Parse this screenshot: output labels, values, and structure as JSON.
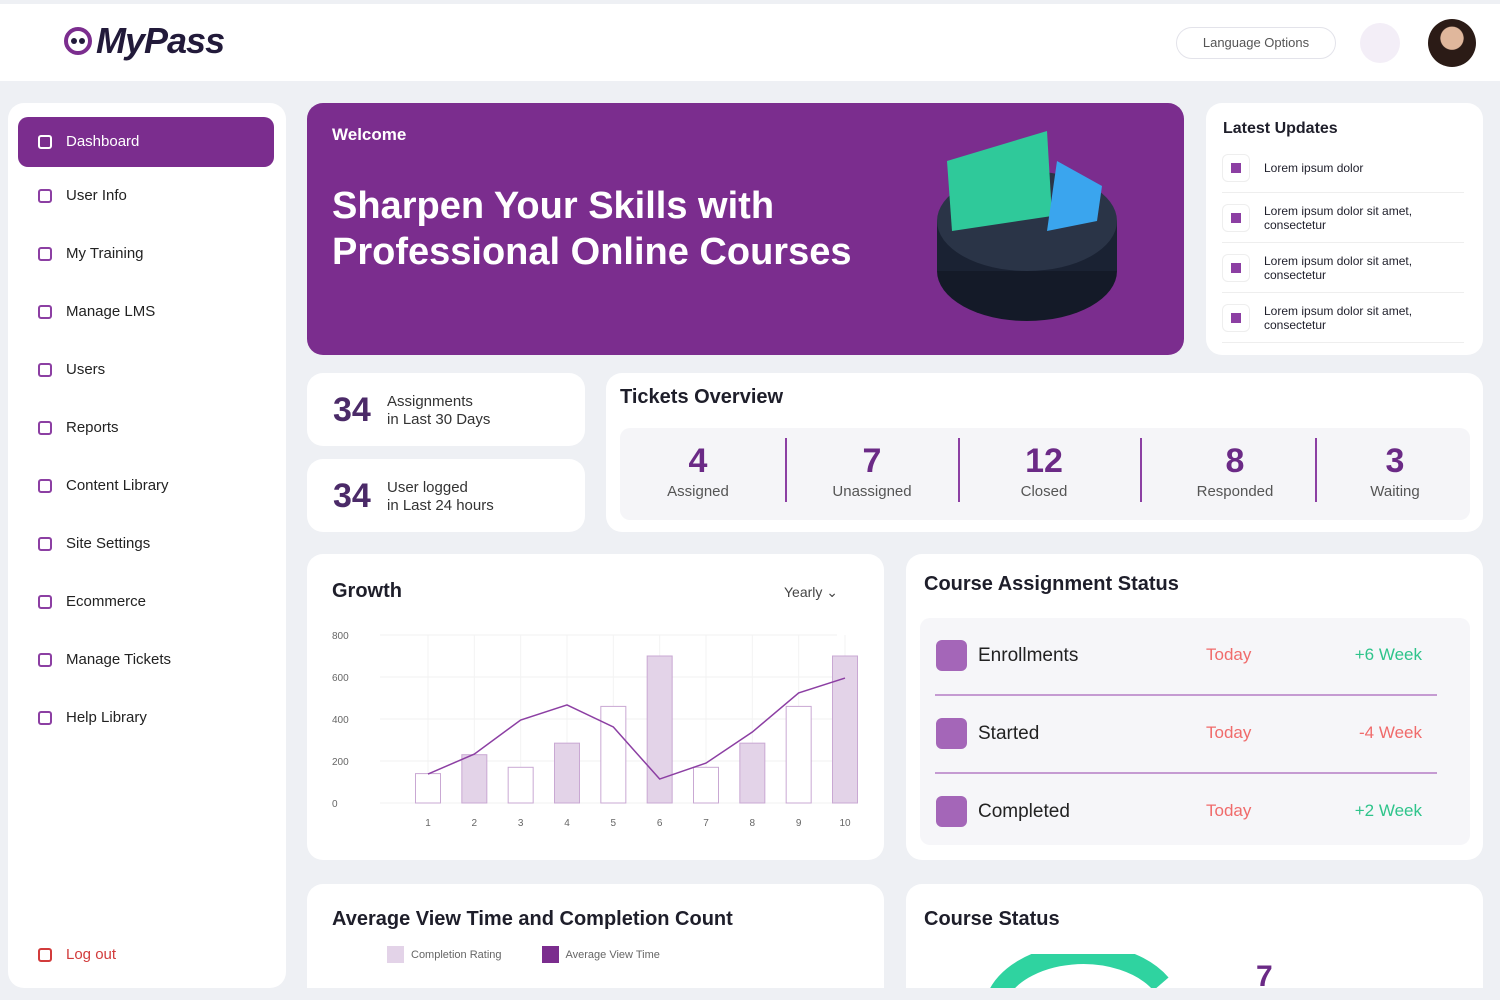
{
  "header": {
    "logo": "MyPass",
    "language_button": "Language Options"
  },
  "sidebar": {
    "items": [
      "Dashboard",
      "User Info",
      "My Training",
      "Manage LMS",
      "Users",
      "Reports",
      "Content Library",
      "Site Settings",
      "Ecommerce",
      "Manage Tickets",
      "Help Library"
    ],
    "logout": "Log out"
  },
  "banner": {
    "welcome": "Welcome",
    "headline_line1": "Sharpen Your Skills with",
    "headline_line2": "Professional Online Courses"
  },
  "latest_updates": {
    "title": "Latest Updates",
    "items": [
      "Lorem ipsum dolor",
      "Lorem ipsum dolor sit amet, consectetur",
      "Lorem ipsum dolor sit amet, consectetur",
      "Lorem ipsum dolor sit amet, consectetur"
    ]
  },
  "stats": [
    {
      "value": 34,
      "label_line1": "Assignments",
      "label_line2": "in Last 30 Days"
    },
    {
      "value": 34,
      "label_line1": "User logged",
      "label_line2": "in Last 24 hours"
    }
  ],
  "tickets": {
    "title": "Tickets Overview",
    "items": [
      {
        "value": 4,
        "label": "Assigned"
      },
      {
        "value": 7,
        "label": "Unassigned"
      },
      {
        "value": 12,
        "label": "Closed"
      },
      {
        "value": 8,
        "label": "Responded"
      },
      {
        "value": 3,
        "label": "Waiting"
      }
    ]
  },
  "chart_data": {
    "type": "bar",
    "title": "Growth",
    "period_selector": "Yearly",
    "categories": [
      "1",
      "2",
      "3",
      "4",
      "5",
      "6",
      "7",
      "8",
      "9",
      "10"
    ],
    "series": [
      {
        "type": "bar",
        "color": "#e3d3e8",
        "values": [
          140,
          230,
          170,
          285,
          460,
          700,
          170,
          285,
          460,
          700
        ]
      },
      {
        "type": "line",
        "color": "#8c3fa3",
        "values": [
          138,
          233,
          395,
          467,
          362,
          114,
          190,
          338,
          524,
          595
        ]
      }
    ],
    "ylim": [
      0,
      800
    ],
    "yticks": [
      0,
      200,
      400,
      600,
      800
    ],
    "grid": true
  },
  "course_assignment": {
    "title": "Course Assignment Status",
    "rows": [
      {
        "label": "Enrollments",
        "period": "Today",
        "change": "+6 Week"
      },
      {
        "label": "Started",
        "period": "Today",
        "change": "-4 Week"
      },
      {
        "label": "Completed",
        "period": "Today",
        "change": "+2 Week"
      }
    ]
  },
  "average_view": {
    "title": "Average View Time and Completion Count",
    "legend": [
      {
        "label": "Completion Rating",
        "color": "#e3d3e8"
      },
      {
        "label": "Average View Time",
        "color": "#7b2d8e"
      }
    ]
  },
  "course_status": {
    "title": "Course Status",
    "value": 7
  }
}
